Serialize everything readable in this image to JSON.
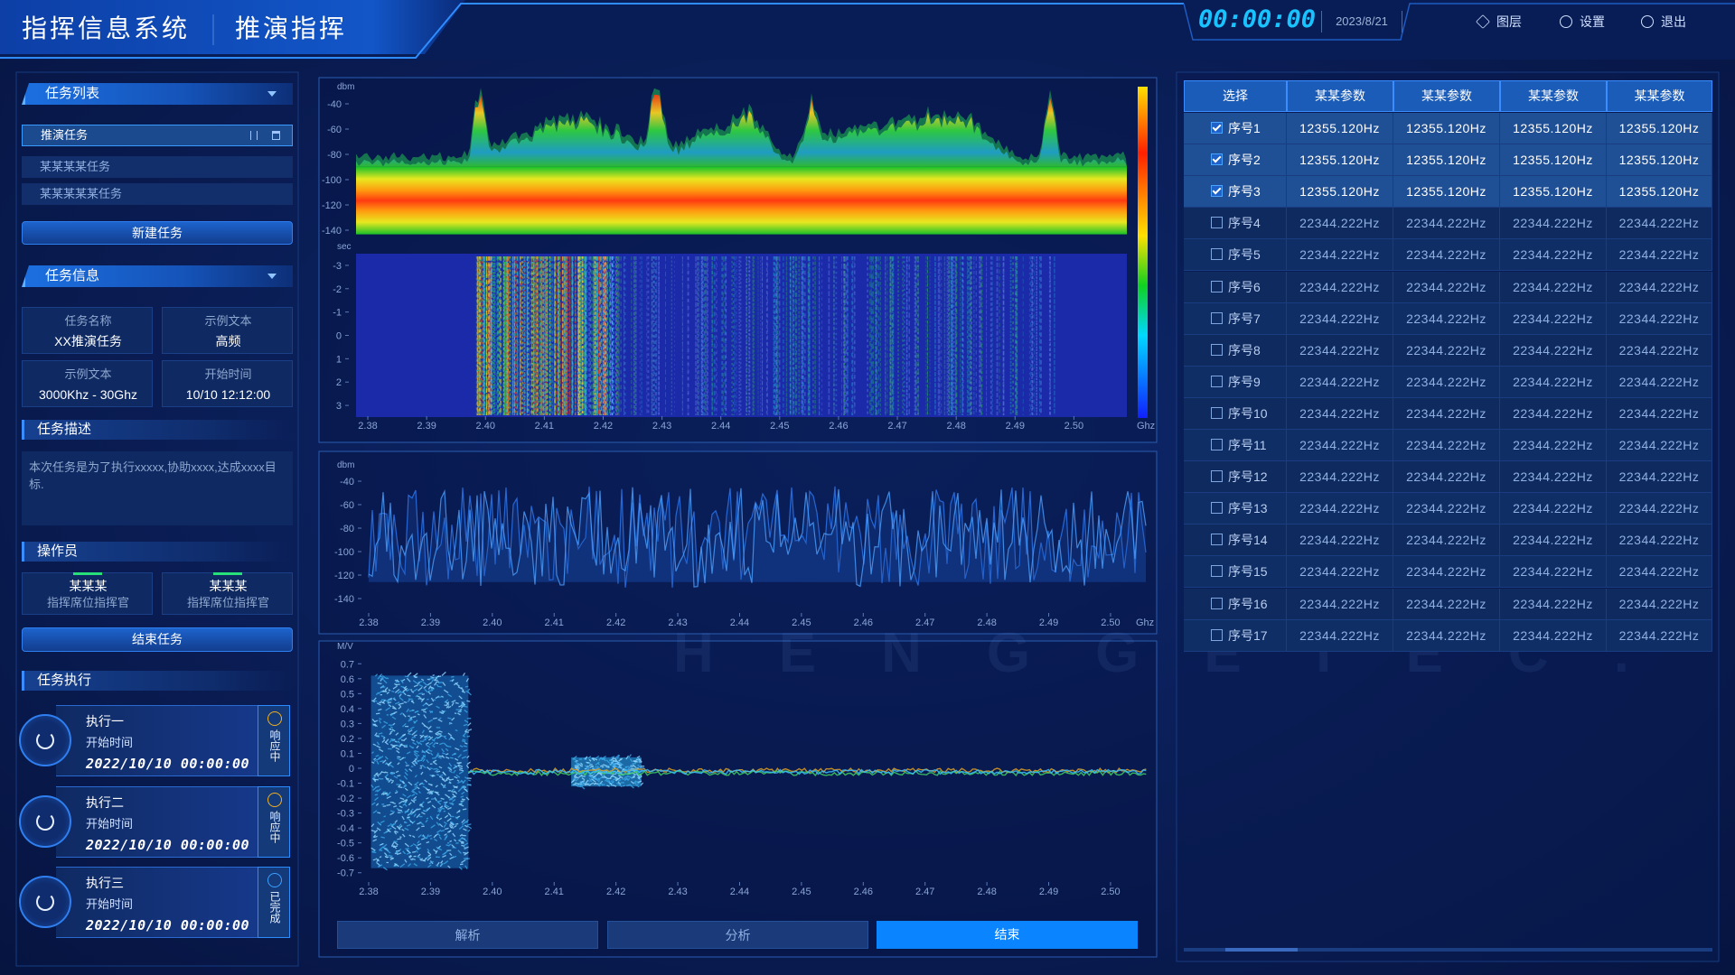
{
  "header": {
    "title": "指挥信息系统",
    "subtitle": "推演指挥",
    "clock": "00:00:00",
    "date": "2023/8/21",
    "menu": [
      "图层",
      "设置",
      "退出"
    ]
  },
  "task_list": {
    "title": "任务列表",
    "items": [
      "推演任务",
      "某某某某任务",
      "某某某某某任务"
    ],
    "button": "新建任务"
  },
  "task_info": {
    "title": "任务信息",
    "fields": [
      {
        "label": "任务名称",
        "value": "XX推演任务"
      },
      {
        "label": "示例文本",
        "value": "高频"
      },
      {
        "label": "示例文本",
        "value": "3000Khz - 30Ghz"
      },
      {
        "label": "开始时间",
        "value": "10/10  12:12:00"
      }
    ]
  },
  "description": {
    "title": "任务描述",
    "text": "本次任务是为了执行xxxxx,协助xxxx,达成xxxx目标."
  },
  "operators": {
    "title": "操作员",
    "items": [
      {
        "name": "某某某",
        "role": "指挥席位指挥官"
      },
      {
        "name": "某某某",
        "role": "指挥席位指挥官"
      }
    ],
    "button": "结束任务"
  },
  "execution": {
    "title": "任务执行",
    "items": [
      {
        "name": "执行一",
        "label": "开始时间",
        "time": "2022/10/10 00:00:00",
        "status": "响应中",
        "done": false
      },
      {
        "name": "执行二",
        "label": "开始时间",
        "time": "2022/10/10 00:00:00",
        "status": "响应中",
        "done": false
      },
      {
        "name": "执行三",
        "label": "开始时间",
        "time": "2022/10/10 00:00:00",
        "status": "已完成",
        "done": true
      }
    ]
  },
  "charts": [
    {
      "type": "spectrum",
      "y_label": "dbm",
      "x_unit": "Ghz",
      "xlim": [
        2.378,
        2.509
      ],
      "ylim": [
        -145,
        -30
      ],
      "yticks": [
        -40,
        -60,
        -80,
        -100,
        -120,
        -140
      ],
      "xticks": [
        2.38,
        2.39,
        {
          "value": 2.4,
          "label": "2.40"
        },
        2.41,
        2.42,
        2.43,
        2.44,
        2.45,
        2.46,
        2.47,
        2.48,
        2.49,
        {
          "value": 2.5,
          "label": "2.50"
        }
      ],
      "waterfall": {
        "y_label": "sec",
        "ylim": [
          3.5,
          -3.5
        ],
        "yticks": [
          -3,
          -2,
          -1,
          0,
          1,
          2,
          3
        ]
      }
    },
    {
      "type": "line",
      "y_label": "dbm",
      "x_unit": "Ghz",
      "xlim": [
        2.38,
        2.506
      ],
      "ylim": [
        -150,
        -30
      ],
      "yticks": [
        -40,
        -60,
        -80,
        -100,
        -120,
        -140
      ],
      "xticks": [
        2.38,
        2.39,
        {
          "value": 2.4,
          "label": "2.40"
        },
        2.41,
        2.42,
        2.43,
        2.44,
        2.45,
        2.46,
        2.47,
        2.48,
        2.49,
        {
          "value": 2.5,
          "label": "2.50"
        }
      ]
    },
    {
      "type": "signal",
      "y_label": "M/V",
      "xlim": [
        2.38,
        2.506
      ],
      "ylim": [
        -0.75,
        0.75
      ],
      "yticks": [
        0.7,
        0.6,
        0.5,
        0.4,
        0.3,
        0.2,
        0.1,
        0,
        -0.1,
        -0.2,
        -0.3,
        -0.4,
        -0.5,
        -0.6,
        -0.7
      ],
      "xticks": [
        2.38,
        2.39,
        {
          "value": 2.4,
          "label": "2.40"
        },
        2.41,
        2.42,
        2.43,
        2.44,
        2.45,
        2.46,
        2.47,
        2.48,
        2.49,
        {
          "value": 2.5,
          "label": "2.50"
        }
      ]
    }
  ],
  "actions": [
    "解析",
    "分析",
    "结束"
  ],
  "table": {
    "columns": [
      "选择",
      "某某参数",
      "某某参数",
      "某某参数",
      "某某参数"
    ],
    "rows": [
      {
        "label": "序号1",
        "checked": true,
        "cells": [
          "12355.120Hz",
          "12355.120Hz",
          "12355.120Hz",
          "12355.120Hz"
        ]
      },
      {
        "label": "序号2",
        "checked": true,
        "cells": [
          "12355.120Hz",
          "12355.120Hz",
          "12355.120Hz",
          "12355.120Hz"
        ]
      },
      {
        "label": "序号3",
        "checked": true,
        "cells": [
          "12355.120Hz",
          "12355.120Hz",
          "12355.120Hz",
          "12355.120Hz"
        ]
      },
      {
        "label": "序号4",
        "checked": false,
        "cells": [
          "22344.222Hz",
          "22344.222Hz",
          "22344.222Hz",
          "22344.222Hz"
        ]
      },
      {
        "label": "序号5",
        "checked": false,
        "cells": [
          "22344.222Hz",
          "22344.222Hz",
          "22344.222Hz",
          "22344.222Hz"
        ]
      },
      {
        "label": "序号6",
        "checked": false,
        "cells": [
          "22344.222Hz",
          "22344.222Hz",
          "22344.222Hz",
          "22344.222Hz"
        ]
      },
      {
        "label": "序号7",
        "checked": false,
        "cells": [
          "22344.222Hz",
          "22344.222Hz",
          "22344.222Hz",
          "22344.222Hz"
        ]
      },
      {
        "label": "序号8",
        "checked": false,
        "cells": [
          "22344.222Hz",
          "22344.222Hz",
          "22344.222Hz",
          "22344.222Hz"
        ]
      },
      {
        "label": "序号9",
        "checked": false,
        "cells": [
          "22344.222Hz",
          "22344.222Hz",
          "22344.222Hz",
          "22344.222Hz"
        ]
      },
      {
        "label": "序号10",
        "checked": false,
        "cells": [
          "22344.222Hz",
          "22344.222Hz",
          "22344.222Hz",
          "22344.222Hz"
        ]
      },
      {
        "label": "序号11",
        "checked": false,
        "cells": [
          "22344.222Hz",
          "22344.222Hz",
          "22344.222Hz",
          "22344.222Hz"
        ]
      },
      {
        "label": "序号12",
        "checked": false,
        "cells": [
          "22344.222Hz",
          "22344.222Hz",
          "22344.222Hz",
          "22344.222Hz"
        ]
      },
      {
        "label": "序号13",
        "checked": false,
        "cells": [
          "22344.222Hz",
          "22344.222Hz",
          "22344.222Hz",
          "22344.222Hz"
        ]
      },
      {
        "label": "序号14",
        "checked": false,
        "cells": [
          "22344.222Hz",
          "22344.222Hz",
          "22344.222Hz",
          "22344.222Hz"
        ]
      },
      {
        "label": "序号15",
        "checked": false,
        "cells": [
          "22344.222Hz",
          "22344.222Hz",
          "22344.222Hz",
          "22344.222Hz"
        ]
      },
      {
        "label": "序号16",
        "checked": false,
        "cells": [
          "22344.222Hz",
          "22344.222Hz",
          "22344.222Hz",
          "22344.222Hz"
        ]
      },
      {
        "label": "序号17",
        "checked": false,
        "cells": [
          "22344.222Hz",
          "22344.222Hz",
          "22344.222Hz",
          "22344.222Hz"
        ]
      }
    ]
  },
  "watermark": "HENGGETEC."
}
